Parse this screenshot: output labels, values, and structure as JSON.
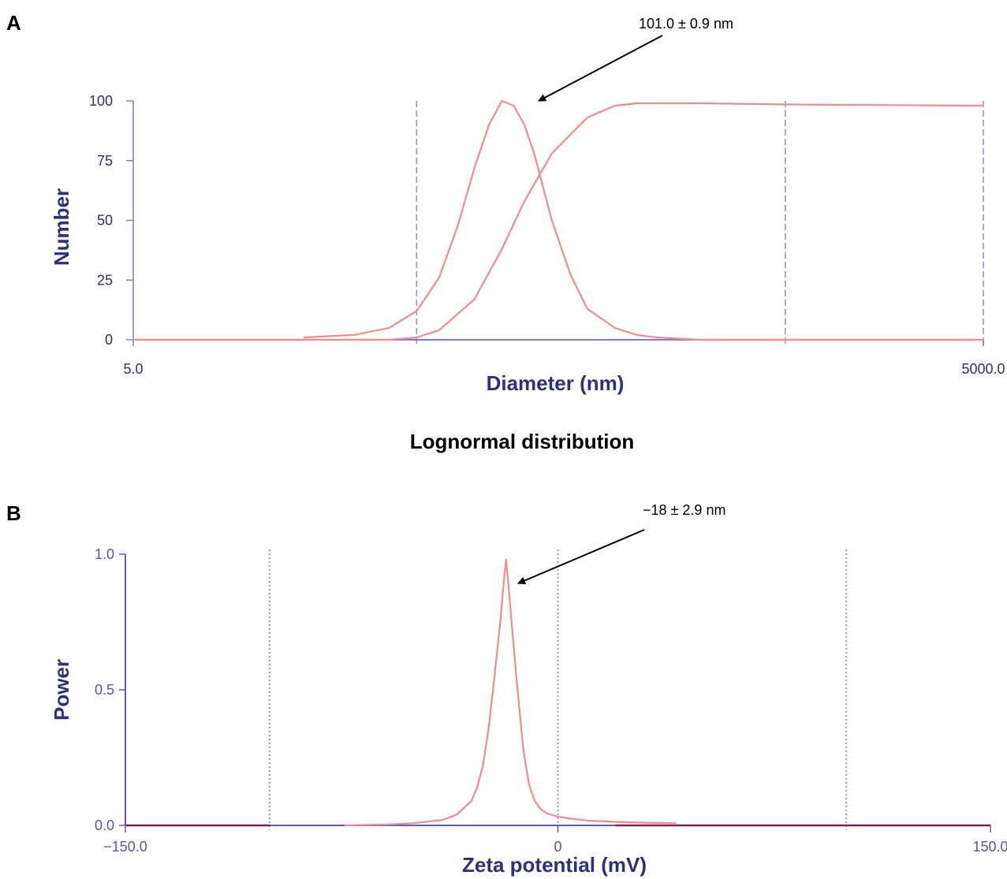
{
  "chart_data": [
    {
      "type": "line",
      "panel": "A",
      "xlabel": "Diameter (nm)",
      "ylabel": "Number",
      "xscale": "log",
      "xlim": [
        5.0,
        5000.0
      ],
      "ylim": [
        0,
        100
      ],
      "x_tick_labels": [
        "5.0",
        "5000.0"
      ],
      "y_tick_labels": [
        "0",
        "25",
        "50",
        "75",
        "100"
      ],
      "gridlines_x": [
        50,
        1000,
        5000
      ],
      "annotation": "101.0 ± 0.9 nm",
      "series": [
        {
          "kind": "distribution",
          "x": [
            20,
            30,
            40,
            50,
            60,
            70,
            80,
            90,
            100,
            110,
            120,
            130,
            150,
            175,
            200,
            250,
            300,
            350,
            500,
            1000,
            5000
          ],
          "y": [
            1,
            2,
            5,
            12,
            26,
            48,
            72,
            90,
            100,
            98,
            90,
            78,
            50,
            27,
            13,
            5,
            2,
            1,
            0,
            0,
            0
          ]
        },
        {
          "kind": "cumulative",
          "x": [
            5,
            20,
            40,
            50,
            60,
            80,
            100,
            120,
            150,
            200,
            250,
            300,
            400,
            500,
            1000,
            5000
          ],
          "y": [
            0,
            0,
            0,
            1,
            4,
            17,
            38,
            58,
            78,
            93,
            98,
            99,
            99,
            99,
            98.5,
            98
          ]
        }
      ],
      "colors": {
        "line": "#f08c8c",
        "axis": "#7d7fc4",
        "grid": "#8c8ed0",
        "text": "#2e2f72"
      }
    },
    {
      "type": "line",
      "panel": "B",
      "xlabel": "Zeta potential (mV)",
      "ylabel": "Power",
      "xlim": [
        -150.0,
        150.0
      ],
      "ylim": [
        0.0,
        1.0
      ],
      "x_tick_labels": [
        "−150.0",
        "0",
        "150.0"
      ],
      "y_tick_labels": [
        "0.0",
        "0.5",
        "1.0"
      ],
      "gridlines_x": [
        -100,
        0,
        100
      ],
      "annotation": "−18 ± 2.9 nm",
      "series": [
        {
          "kind": "distribution",
          "x": [
            -74,
            -60,
            -50,
            -40,
            -35,
            -30,
            -28,
            -26,
            -24,
            -22,
            -20,
            -19,
            -18,
            -17,
            -16,
            -14,
            -12,
            -10,
            -8,
            -6,
            -4,
            0,
            5,
            10,
            20,
            30,
            41
          ],
          "y": [
            0,
            0.003,
            0.008,
            0.02,
            0.04,
            0.09,
            0.14,
            0.22,
            0.36,
            0.55,
            0.75,
            0.87,
            0.98,
            0.87,
            0.74,
            0.5,
            0.28,
            0.15,
            0.09,
            0.06,
            0.045,
            0.032,
            0.024,
            0.018,
            0.013,
            0.01,
            0.008
          ]
        }
      ],
      "colors": {
        "line": "#f08c8c",
        "axis": "#5c5eb3",
        "grid": "#8c8ed0",
        "text": "#5456ad",
        "baseline": "#8b1a4e"
      }
    }
  ],
  "figure": {
    "panel_a_label": "A",
    "panel_b_label": "B",
    "subtitle": "Lognormal distribution"
  }
}
